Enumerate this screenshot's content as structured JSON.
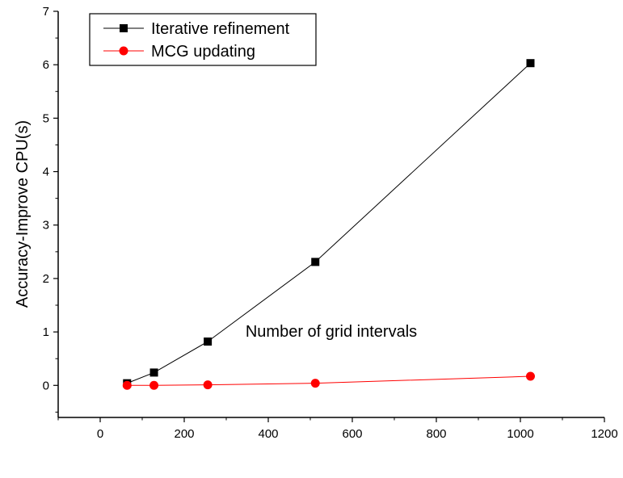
{
  "chart_data": {
    "type": "line",
    "xlabel": "Number of grid intervals",
    "ylabel": "Accuracy-Improve CPU(s)",
    "xlim": [
      -100,
      1200
    ],
    "ylim": [
      -0.6,
      7
    ],
    "xticks": [
      0,
      200,
      400,
      600,
      800,
      1000,
      1200
    ],
    "yticks": [
      0,
      1,
      2,
      3,
      4,
      5,
      6,
      7
    ],
    "grid": false,
    "legend_position": "top-left",
    "series": [
      {
        "name": "Iterative refinement",
        "marker": "square",
        "color": "#000000",
        "x": [
          64,
          128,
          256,
          512,
          1024
        ],
        "y": [
          0.04,
          0.24,
          0.82,
          2.31,
          6.03
        ]
      },
      {
        "name": "MCG updating",
        "marker": "circle",
        "color": "#ff0000",
        "x": [
          64,
          128,
          256,
          512,
          1024
        ],
        "y": [
          0.0,
          0.0,
          0.01,
          0.04,
          0.17
        ]
      }
    ]
  }
}
